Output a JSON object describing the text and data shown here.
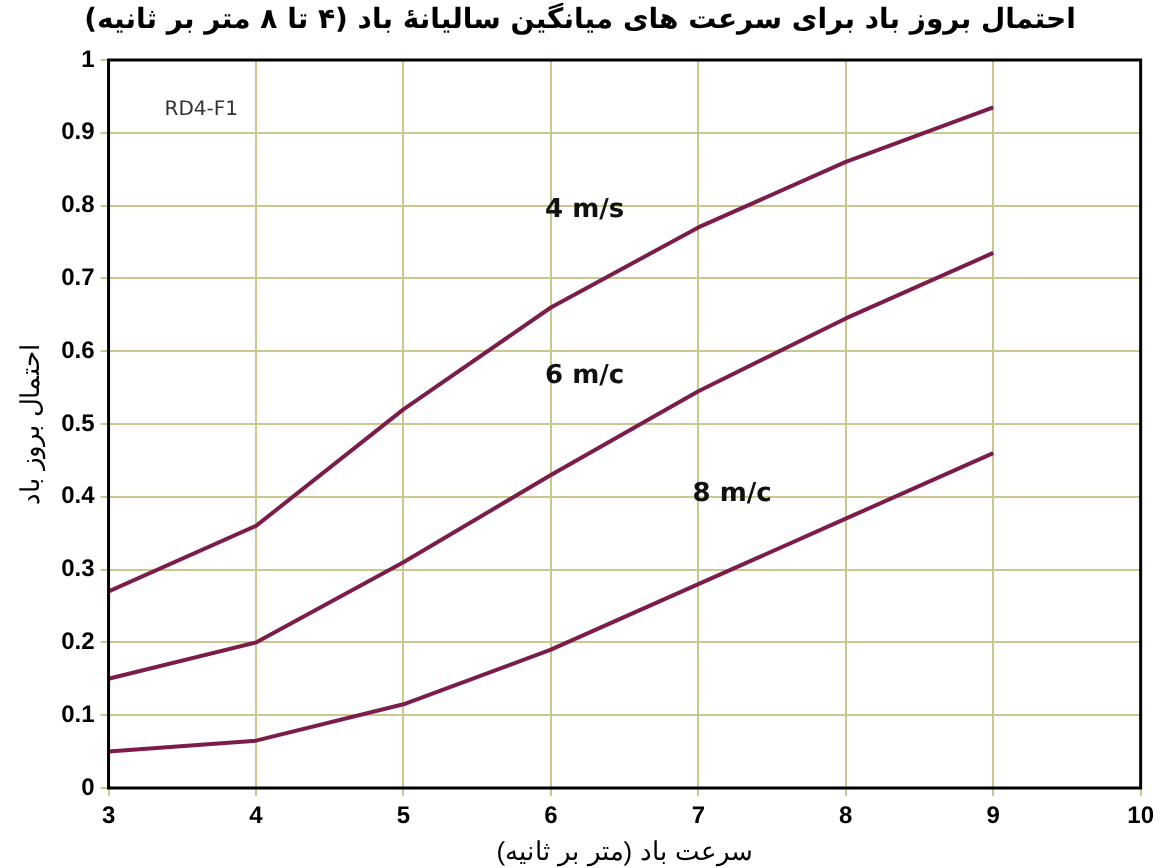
{
  "chart_data": {
    "type": "line",
    "title": "احتمال بروز باد برای سرعت های میانگین سالیانهٔ باد (۴ تا ۸ متر بر ثانیه)",
    "xlabel": "سرعت باد (متر بر ثانیه)",
    "ylabel": "احتمال بروز باد",
    "annotations": [
      "RD4-F1"
    ],
    "x": [
      3,
      4,
      5,
      6,
      7,
      8,
      9
    ],
    "series": [
      {
        "name": "4 m/s",
        "color": "#7b1c4a",
        "values": [
          0.27,
          0.36,
          0.52,
          0.66,
          0.77,
          0.86,
          0.935
        ]
      },
      {
        "name": "6 m/c",
        "color": "#7b1c4a",
        "values": [
          0.15,
          0.2,
          0.31,
          0.43,
          0.545,
          0.645,
          0.735
        ]
      },
      {
        "name": "8 m/c",
        "color": "#7b1c4a",
        "values": [
          0.05,
          0.065,
          0.115,
          0.19,
          0.28,
          0.37,
          0.46
        ]
      }
    ],
    "xlim": [
      3,
      10
    ],
    "xticks": [
      3,
      4,
      5,
      6,
      7,
      8,
      9,
      10
    ],
    "ylim": [
      0,
      1
    ],
    "yticks": [
      0,
      0.1,
      0.2,
      0.3,
      0.4,
      0.5,
      0.6,
      0.7,
      0.8,
      0.9,
      1
    ],
    "grid": true,
    "legend": false,
    "marker": "none",
    "line_style": "solid"
  }
}
